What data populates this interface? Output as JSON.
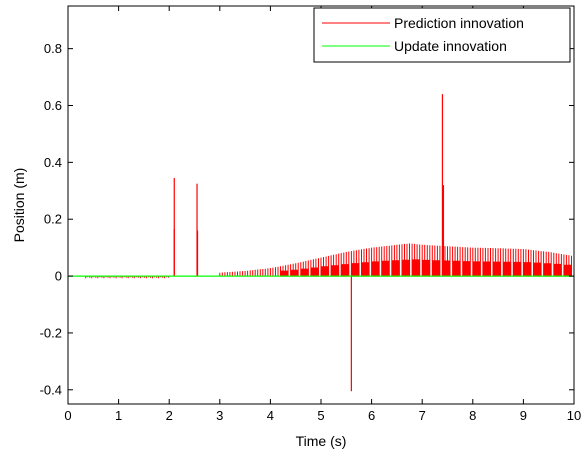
{
  "chart_data": {
    "type": "line",
    "xlabel": "Time (s)",
    "ylabel": "Position (m)",
    "xlim": [
      0,
      10
    ],
    "ylim": [
      -0.45,
      0.95
    ],
    "xticks": [
      0,
      1,
      2,
      3,
      4,
      5,
      6,
      7,
      8,
      9,
      10
    ],
    "xtick_labels": [
      "0",
      "1",
      "2",
      "3",
      "4",
      "5",
      "6",
      "7",
      "8",
      "9",
      "10"
    ],
    "yticks": [
      -0.4,
      -0.2,
      0,
      0.2,
      0.4,
      0.6,
      0.8
    ],
    "ytick_labels": [
      "-0.4",
      "-0.2",
      "0",
      "0.2",
      "0.4",
      "0.6",
      "0.8"
    ],
    "grid": false,
    "legend_position": "top-right",
    "series": [
      {
        "name": "Prediction innovation",
        "color": "#ff0000",
        "style": "spike-train",
        "x": [
          0.4,
          0.7,
          1.0,
          1.3,
          1.6,
          1.9,
          2.1,
          2.1,
          2.55,
          2.56,
          3.0,
          3.5,
          4.0,
          4.5,
          5.0,
          5.5,
          5.6,
          6.0,
          6.5,
          6.75,
          7.0,
          7.4,
          7.42,
          7.5,
          8.0,
          8.5,
          9.0,
          9.5,
          10.0
        ],
        "y": [
          -0.005,
          -0.006,
          -0.005,
          -0.006,
          -0.004,
          -0.008,
          0.345,
          0.165,
          0.325,
          0.16,
          0.012,
          0.018,
          0.028,
          0.045,
          0.065,
          0.085,
          -0.405,
          0.1,
          0.11,
          0.115,
          0.11,
          0.64,
          0.32,
          0.105,
          0.1,
          0.098,
          0.095,
          0.085,
          0.07
        ]
      },
      {
        "name": "Update innovation",
        "color": "#00ff00",
        "x": [
          0,
          2.1,
          2.2,
          10
        ],
        "y": [
          0,
          0,
          0,
          0
        ]
      }
    ]
  }
}
